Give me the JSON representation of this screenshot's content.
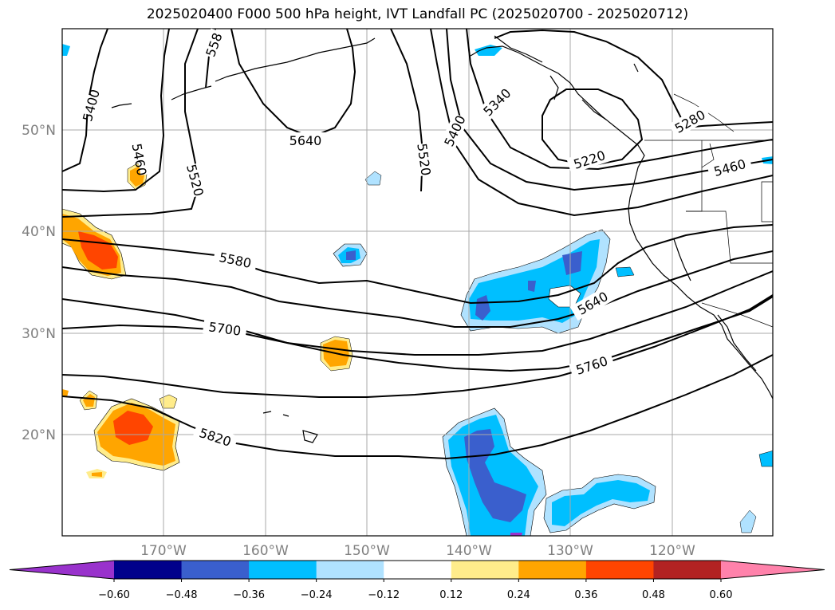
{
  "title": "2025020400 F000 500 hPa height, IVT Landfall PC (2025020700 - 2025020712)",
  "lat_labels": [
    "50°N",
    "40°N",
    "30°N",
    "20°N"
  ],
  "lon_labels": [
    "170°W",
    "160°W",
    "150°W",
    "140°W",
    "130°W",
    "120°W"
  ],
  "contour_labels": {
    "c5400a": "5400",
    "c5460a": "5460",
    "c5520a": "5520",
    "c558a": "558",
    "c5640a": "5640",
    "c5520b": "5520",
    "c5400b": "5400",
    "c5340": "5340",
    "c5280": "5280",
    "c5220": "5220",
    "c5460b": "5460",
    "c5580": "5580",
    "c5640b": "5640",
    "c5700": "5700",
    "c5760": "5760",
    "c5820": "5820"
  },
  "colorbar": {
    "ticks": [
      "−0.60",
      "−0.48",
      "−0.36",
      "−0.24",
      "−0.12",
      "0.12",
      "0.24",
      "0.36",
      "0.48",
      "0.60"
    ],
    "colors": [
      "#9932cc",
      "#00008b",
      "#3a5fcd",
      "#00bfff",
      "#b0e2ff",
      "#ffffff",
      "#ffec8b",
      "#ffa500",
      "#ff4500",
      "#b22222",
      "#ff82ab"
    ]
  }
}
